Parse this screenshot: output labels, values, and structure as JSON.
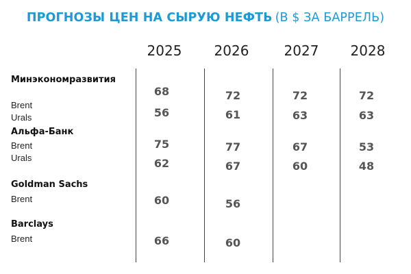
{
  "header": {
    "title": "ПРОГНОЗЫ ЦЕН НА СЫРУЮ НЕФТЬ",
    "unit": "(В $ ЗА БАРРЕЛЬ)"
  },
  "chart_data": {
    "type": "table",
    "title": "ПРОГНОЗЫ ЦЕН НА СЫРУЮ НЕФТЬ",
    "subtitle": "(В $ ЗА БАРРЕЛЬ)",
    "columns": [
      "2025",
      "2026",
      "2027",
      "2028"
    ],
    "groups": [
      {
        "source": "Минэкономразвития",
        "rows": [
          {
            "series": "Brent",
            "values": [
              68,
              72,
              72,
              72
            ]
          },
          {
            "series": "Urals",
            "values": [
              56,
              61,
              63,
              63
            ]
          }
        ]
      },
      {
        "source": "Альфа-Банк",
        "rows": [
          {
            "series": "Brent",
            "values": [
              75,
              77,
              67,
              53
            ]
          },
          {
            "series": "Urals",
            "values": [
              62,
              67,
              60,
              48
            ]
          }
        ]
      },
      {
        "source": "Goldman Sachs",
        "rows": [
          {
            "series": "Brent",
            "values": [
              60,
              56,
              null,
              null
            ]
          }
        ]
      },
      {
        "source": "Barclays",
        "rows": [
          {
            "series": "Brent",
            "values": [
              66,
              60,
              null,
              null
            ]
          }
        ]
      }
    ]
  },
  "colors": {
    "title": "#1a9bd7",
    "values": "#555555",
    "text": "#222222",
    "rules": "#444444"
  }
}
